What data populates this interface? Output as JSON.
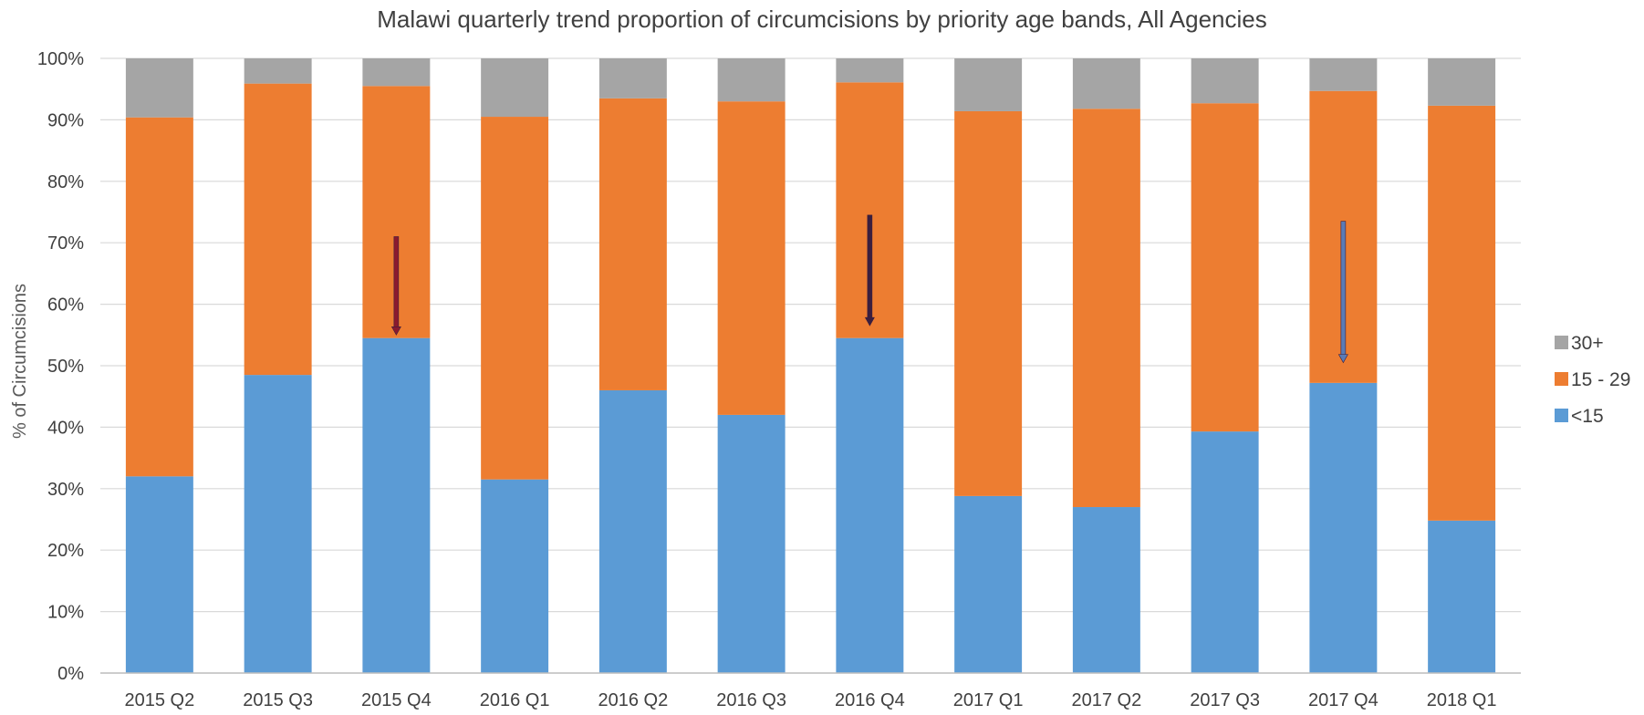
{
  "chart_data": {
    "type": "bar",
    "stacked": true,
    "title": "Malawi quarterly trend proportion of circumcisions by priority age bands, All Agencies",
    "xlabel": "",
    "ylabel": "% of Circumcisions",
    "ylim": [
      0,
      100
    ],
    "y_ticks": [
      "0%",
      "10%",
      "20%",
      "30%",
      "40%",
      "50%",
      "60%",
      "70%",
      "80%",
      "90%",
      "100%"
    ],
    "grid": true,
    "legend_position": "right",
    "categories": [
      "2015 Q2",
      "2015 Q3",
      "2015 Q4",
      "2016 Q1",
      "2016 Q2",
      "2016 Q3",
      "2016 Q4",
      "2017 Q1",
      "2017 Q2",
      "2017 Q3",
      "2017 Q4",
      "2018 Q1"
    ],
    "series": [
      {
        "name": "<15",
        "color": "#5B9BD5",
        "values": [
          32,
          48.5,
          54.5,
          31.5,
          46,
          42,
          54.5,
          28.8,
          27,
          39.3,
          47.2,
          24.8
        ]
      },
      {
        "name": "15 - 29",
        "color": "#ED7D31",
        "values": [
          58.4,
          47.4,
          41,
          59,
          47.5,
          51,
          41.6,
          62.6,
          64.8,
          53.4,
          47.5,
          67.5
        ]
      },
      {
        "name": "30+",
        "color": "#A5A5A5",
        "values": [
          9.6,
          4.1,
          4.5,
          9.5,
          6.5,
          7,
          3.9,
          8.6,
          8.2,
          7.3,
          5.3,
          7.7
        ]
      }
    ],
    "legend_order": [
      "30+",
      "15 - 29",
      "<15"
    ],
    "annotations": [
      {
        "type": "down-arrow",
        "category": "2015 Q4",
        "from": 71,
        "to": 55,
        "color": "#8B1A2E"
      },
      {
        "type": "down-arrow",
        "category": "2016 Q4",
        "from": 74.5,
        "to": 56.5,
        "color": "#3A1E3E"
      },
      {
        "type": "down-arrow",
        "category": "2017 Q4",
        "from": 73.5,
        "to": 50.5,
        "color": "#5B7BB5"
      }
    ]
  }
}
